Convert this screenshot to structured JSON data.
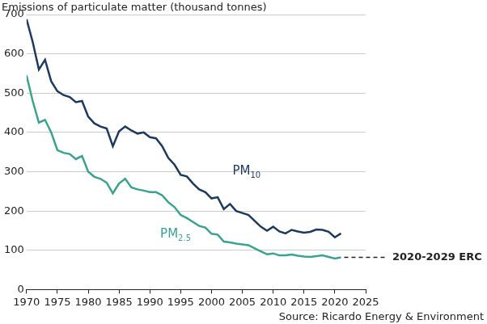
{
  "chart_data": {
    "type": "line",
    "title": "Emissions of particulate matter (thousand tonnes)",
    "source": "Source: Ricardo Energy & Environment",
    "x": [
      1970,
      1971,
      1972,
      1973,
      1974,
      1975,
      1976,
      1977,
      1978,
      1979,
      1980,
      1981,
      1982,
      1983,
      1984,
      1985,
      1986,
      1987,
      1988,
      1989,
      1990,
      1991,
      1992,
      1993,
      1994,
      1995,
      1996,
      1997,
      1998,
      1999,
      2000,
      2001,
      2002,
      2003,
      2004,
      2005,
      2006,
      2007,
      2008,
      2009,
      2010,
      2011,
      2012,
      2013,
      2014,
      2015,
      2016,
      2017,
      2018,
      2019,
      2020,
      2021
    ],
    "series": [
      {
        "name": "PM10",
        "color": "#1b3a5e",
        "values": [
          688,
          630,
          560,
          585,
          530,
          505,
          495,
          490,
          477,
          480,
          440,
          423,
          415,
          410,
          365,
          403,
          415,
          405,
          397,
          400,
          388,
          385,
          365,
          335,
          318,
          292,
          288,
          270,
          255,
          248,
          232,
          235,
          205,
          218,
          200,
          195,
          190,
          175,
          160,
          150,
          160,
          148,
          143,
          152,
          148,
          145,
          147,
          153,
          152,
          147,
          133,
          143
        ]
      },
      {
        "name": "PM2.5",
        "color": "#3aa38f",
        "values": [
          545,
          480,
          425,
          432,
          400,
          355,
          348,
          345,
          332,
          340,
          300,
          287,
          282,
          272,
          245,
          270,
          282,
          260,
          255,
          252,
          248,
          248,
          240,
          222,
          210,
          190,
          182,
          172,
          162,
          158,
          142,
          140,
          122,
          120,
          117,
          115,
          113,
          105,
          97,
          90,
          92,
          87,
          87,
          89,
          86,
          84,
          83,
          85,
          87,
          83,
          79,
          82
        ]
      }
    ],
    "xlim": [
      1970,
      2025
    ],
    "xticks": [
      1970,
      1975,
      1980,
      1985,
      1990,
      1995,
      2000,
      2005,
      2010,
      2015,
      2020,
      2025
    ],
    "ylim": [
      0,
      700
    ],
    "yticks": [
      0,
      100,
      200,
      300,
      400,
      500,
      600,
      700
    ],
    "grid": true,
    "annotations": [
      {
        "text": "2020-2029 ERC",
        "y": 82
      }
    ]
  }
}
